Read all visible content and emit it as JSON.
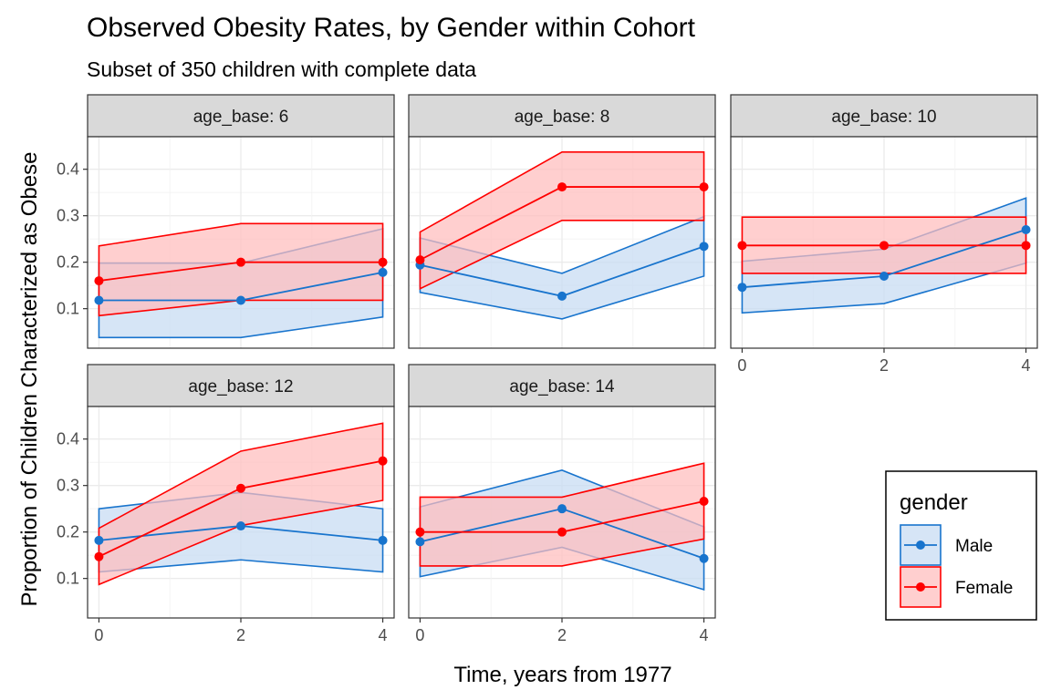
{
  "chart_data": {
    "type": "line",
    "title": "Observed Obesity Rates, by Gender within Cohort",
    "subtitle": "Subset of 350 children with complete data",
    "xlabel": "Time, years from 1977",
    "ylabel": "Proportion of Children Characterized as Obese",
    "x_ticks": [
      0,
      2,
      4
    ],
    "y_ticks": [
      0.1,
      0.2,
      0.3,
      0.4
    ],
    "x_tick_labels": [
      "0",
      "2",
      "4"
    ],
    "y_tick_labels": [
      "0.1",
      "0.2",
      "0.3",
      "0.4"
    ],
    "xlim": [
      -0.16,
      4.16
    ],
    "ylim": [
      0.015,
      0.47
    ],
    "grid": true,
    "legend": {
      "title": "gender",
      "position": "bottom-right",
      "entries": [
        "Male",
        "Female"
      ]
    },
    "colors": {
      "Male": "#1874cd",
      "Female": "#ff0000",
      "Male_fill": "#c6dbf2",
      "Female_fill": "#ffbcbc",
      "strip_bg": "#d9d9d9",
      "grid": "#ebebeb"
    },
    "panels": [
      {
        "label": "age_base: 6",
        "x": [
          0,
          2,
          4
        ],
        "series": [
          {
            "name": "Male",
            "values": [
              0.118,
              0.118,
              0.178
            ],
            "lower": [
              0.038,
              0.038,
              0.082
            ],
            "upper": [
              0.198,
              0.198,
              0.272
            ]
          },
          {
            "name": "Female",
            "values": [
              0.16,
              0.2,
              0.2
            ],
            "lower": [
              0.085,
              0.118,
              0.118
            ],
            "upper": [
              0.235,
              0.283,
              0.283
            ]
          }
        ]
      },
      {
        "label": "age_base: 8",
        "x": [
          0,
          2,
          4
        ],
        "series": [
          {
            "name": "Male",
            "values": [
              0.194,
              0.127,
              0.234
            ],
            "lower": [
              0.135,
              0.078,
              0.17
            ],
            "upper": [
              0.252,
              0.176,
              0.298
            ]
          },
          {
            "name": "Female",
            "values": [
              0.205,
              0.362,
              0.362
            ],
            "lower": [
              0.143,
              0.29,
              0.29
            ],
            "upper": [
              0.265,
              0.437,
              0.437
            ]
          }
        ]
      },
      {
        "label": "age_base: 10",
        "x": [
          0,
          2,
          4
        ],
        "series": [
          {
            "name": "Male",
            "values": [
              0.146,
              0.17,
              0.27
            ],
            "lower": [
              0.091,
              0.111,
              0.198
            ],
            "upper": [
              0.202,
              0.228,
              0.338
            ]
          },
          {
            "name": "Female",
            "values": [
              0.236,
              0.236,
              0.236
            ],
            "lower": [
              0.176,
              0.176,
              0.176
            ],
            "upper": [
              0.297,
              0.297,
              0.297
            ]
          }
        ]
      },
      {
        "label": "age_base: 12",
        "x": [
          0,
          2,
          4
        ],
        "series": [
          {
            "name": "Male",
            "values": [
              0.182,
              0.213,
              0.182
            ],
            "lower": [
              0.114,
              0.14,
              0.114
            ],
            "upper": [
              0.25,
              0.285,
              0.25
            ]
          },
          {
            "name": "Female",
            "values": [
              0.147,
              0.294,
              0.353
            ],
            "lower": [
              0.087,
              0.214,
              0.268
            ],
            "upper": [
              0.208,
              0.374,
              0.434
            ]
          }
        ]
      },
      {
        "label": "age_base: 14",
        "x": [
          0,
          2,
          4
        ],
        "series": [
          {
            "name": "Male",
            "values": [
              0.179,
              0.25,
              0.143
            ],
            "lower": [
              0.104,
              0.167,
              0.076
            ],
            "upper": [
              0.254,
              0.333,
              0.211
            ]
          },
          {
            "name": "Female",
            "values": [
              0.2,
              0.2,
              0.266
            ],
            "lower": [
              0.127,
              0.127,
              0.185
            ],
            "upper": [
              0.275,
              0.275,
              0.348
            ]
          }
        ]
      }
    ]
  }
}
